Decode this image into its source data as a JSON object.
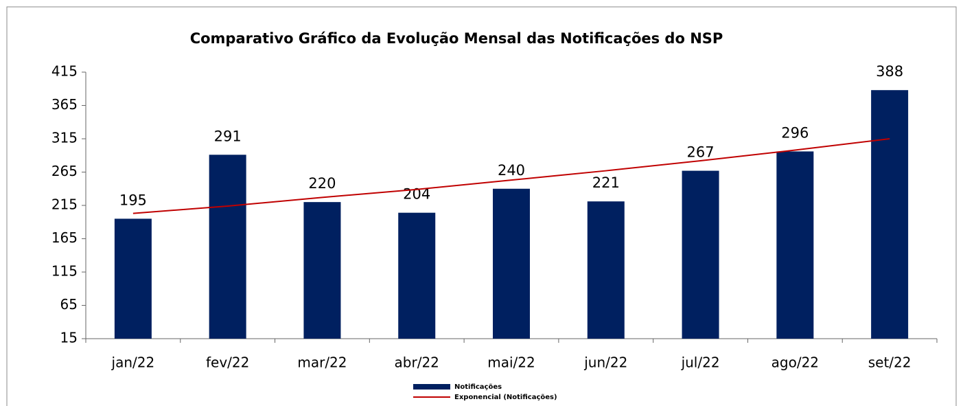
{
  "chart_data": {
    "type": "bar",
    "title": "Comparativo Gráfico da Evolução Mensal das Notificações do NSP",
    "categories": [
      "jan/22",
      "fev/22",
      "mar/22",
      "abr/22",
      "mai/22",
      "jun/22",
      "jul/22",
      "ago/22",
      "set/22"
    ],
    "series": [
      {
        "name": "Notificações",
        "type": "bar",
        "color": "#002060",
        "values": [
          195,
          291,
          220,
          204,
          240,
          221,
          267,
          296,
          388
        ]
      },
      {
        "name": "Exponencial (Notificações)",
        "type": "line",
        "color": "#c00000",
        "values": [
          203,
          214,
          227,
          239,
          253,
          267,
          282,
          298,
          315
        ]
      }
    ],
    "ylim": [
      15,
      415
    ],
    "yticks": [
      15,
      65,
      115,
      165,
      215,
      265,
      315,
      365,
      415
    ],
    "data_labels": true,
    "legend": "bottom"
  }
}
